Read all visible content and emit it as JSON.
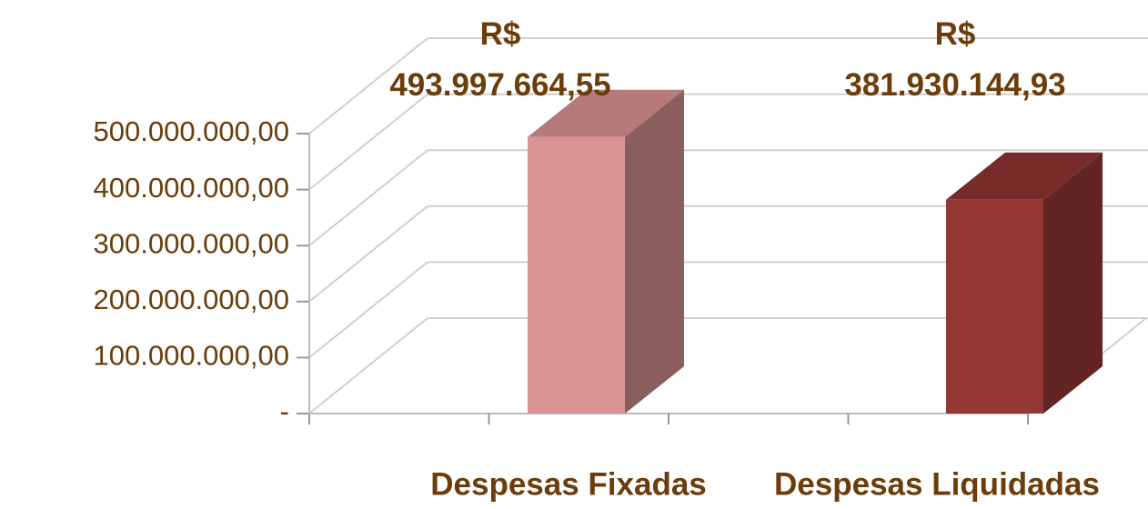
{
  "chart_data": {
    "type": "bar3d",
    "categories": [
      "Despesas Fixadas",
      "Despesas Liquidadas"
    ],
    "values": [
      493997664.55,
      381930144.93
    ],
    "value_labels": [
      "R$ 493.997.664,55",
      "R$ 381.930.144,93"
    ],
    "colors": [
      {
        "front": "#d99594",
        "side": "#8b5e5e",
        "top": "#b57a79"
      },
      {
        "front": "#953735",
        "side": "#632523",
        "top": "#772c2a"
      }
    ],
    "ylim": [
      0,
      500000000
    ],
    "yticks": [
      {
        "value": 0,
        "label": "-"
      },
      {
        "value": 100000000,
        "label": "100.000.000,00"
      },
      {
        "value": 200000000,
        "label": "200.000.000,00"
      },
      {
        "value": 300000000,
        "label": "300.000.000,00"
      },
      {
        "value": 400000000,
        "label": "400.000.000,00"
      },
      {
        "value": 500000000,
        "label": "500.000.000,00"
      }
    ],
    "grid": true
  }
}
